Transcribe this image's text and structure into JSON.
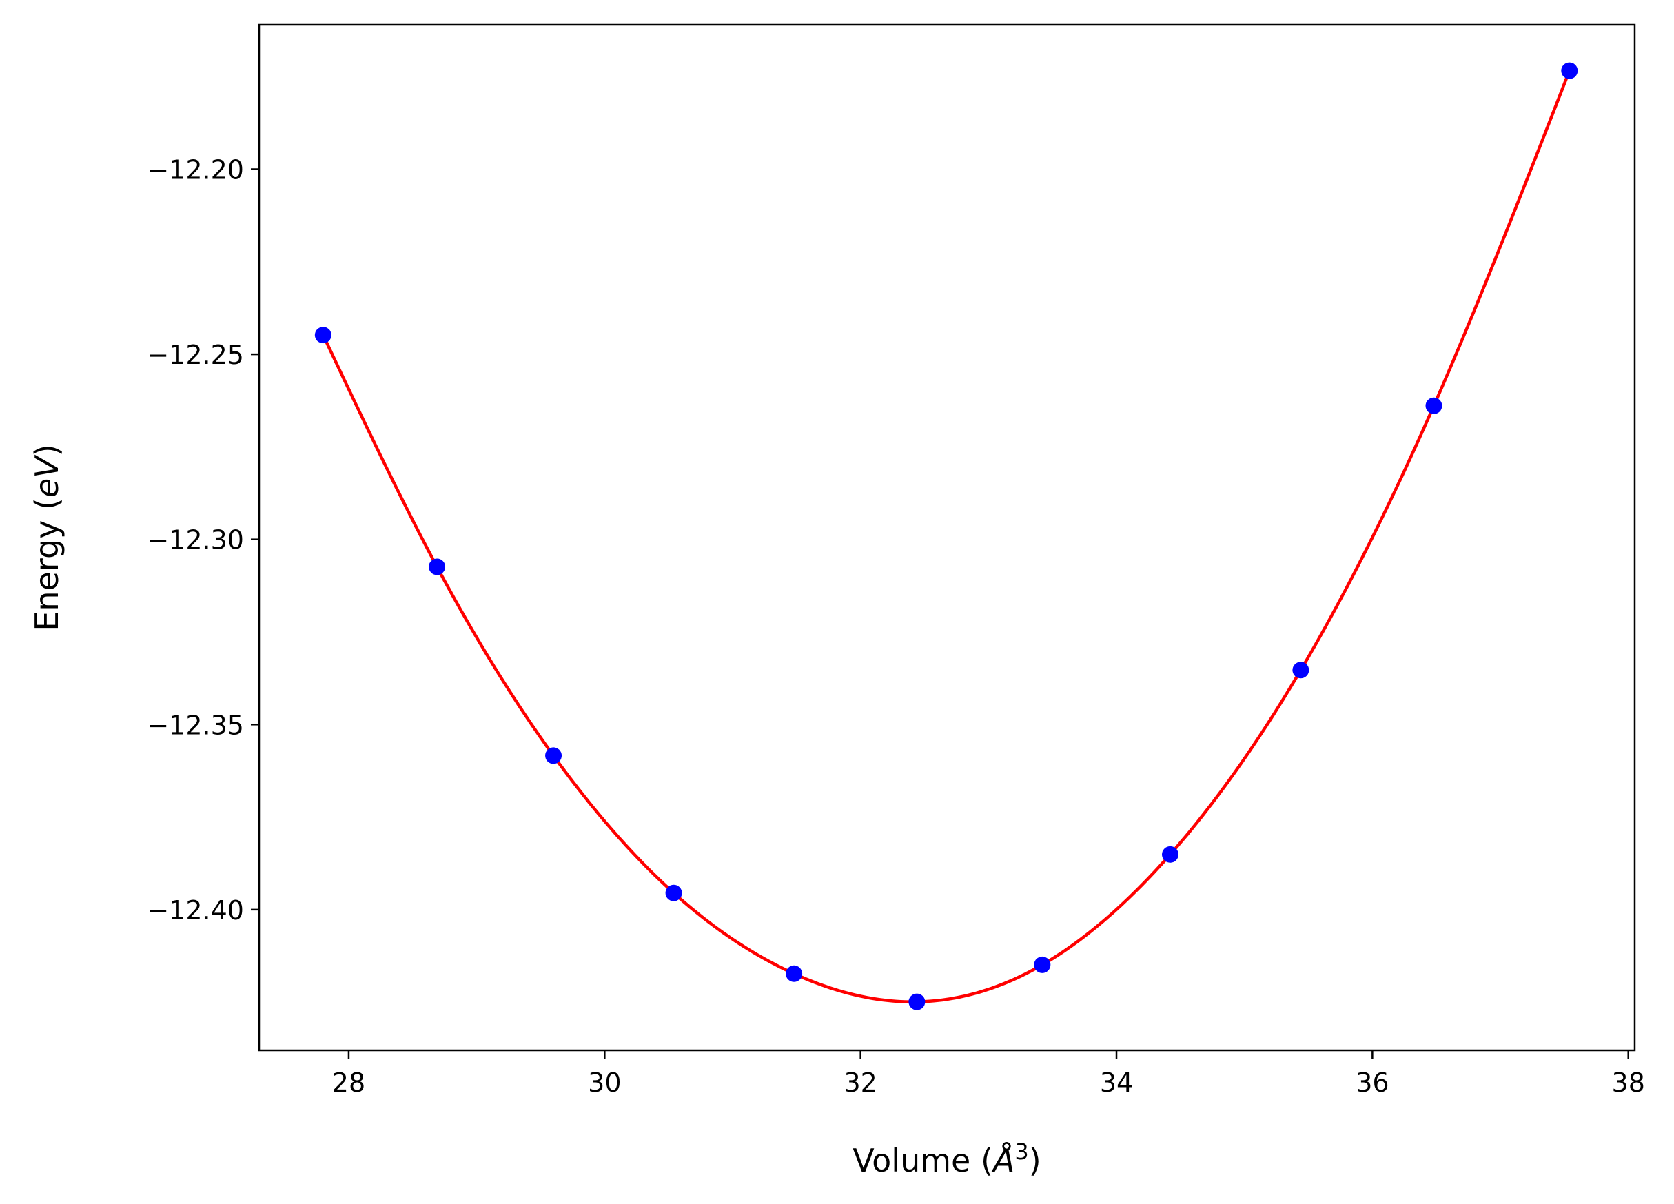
{
  "chart_data": {
    "type": "scatter",
    "title": "",
    "xlabel": "Volume",
    "xlabel_unit": "Å",
    "xlabel_exponent": "3",
    "ylabel": "Energy",
    "ylabel_unit": "eV",
    "xlim": [
      27.3,
      38.05
    ],
    "ylim": [
      -12.438,
      -12.161
    ],
    "xticks": [
      28,
      30,
      32,
      34,
      36,
      38
    ],
    "xtick_labels": [
      "28",
      "30",
      "32",
      "34",
      "36",
      "38"
    ],
    "yticks": [
      -12.2,
      -12.25,
      -12.3,
      -12.35,
      -12.4
    ],
    "ytick_labels": [
      "−12.20",
      "−12.25",
      "−12.30",
      "−12.35",
      "−12.40"
    ],
    "grid": false,
    "series": [
      {
        "kind": "points",
        "color": "#0000ff",
        "x": [
          27.8,
          28.69,
          29.6,
          30.54,
          31.48,
          32.44,
          33.42,
          34.42,
          35.44,
          36.48,
          37.54
        ],
        "y": [
          -12.2448,
          -12.3074,
          -12.3584,
          -12.3955,
          -12.4173,
          -12.4249,
          -12.4149,
          -12.3851,
          -12.3353,
          -12.2639,
          -12.1734
        ]
      },
      {
        "kind": "fit-curve",
        "color": "#ff0000",
        "x_range": [
          27.8,
          37.54
        ],
        "min_volume": 32.3,
        "min_energy": -12.4251
      }
    ]
  }
}
